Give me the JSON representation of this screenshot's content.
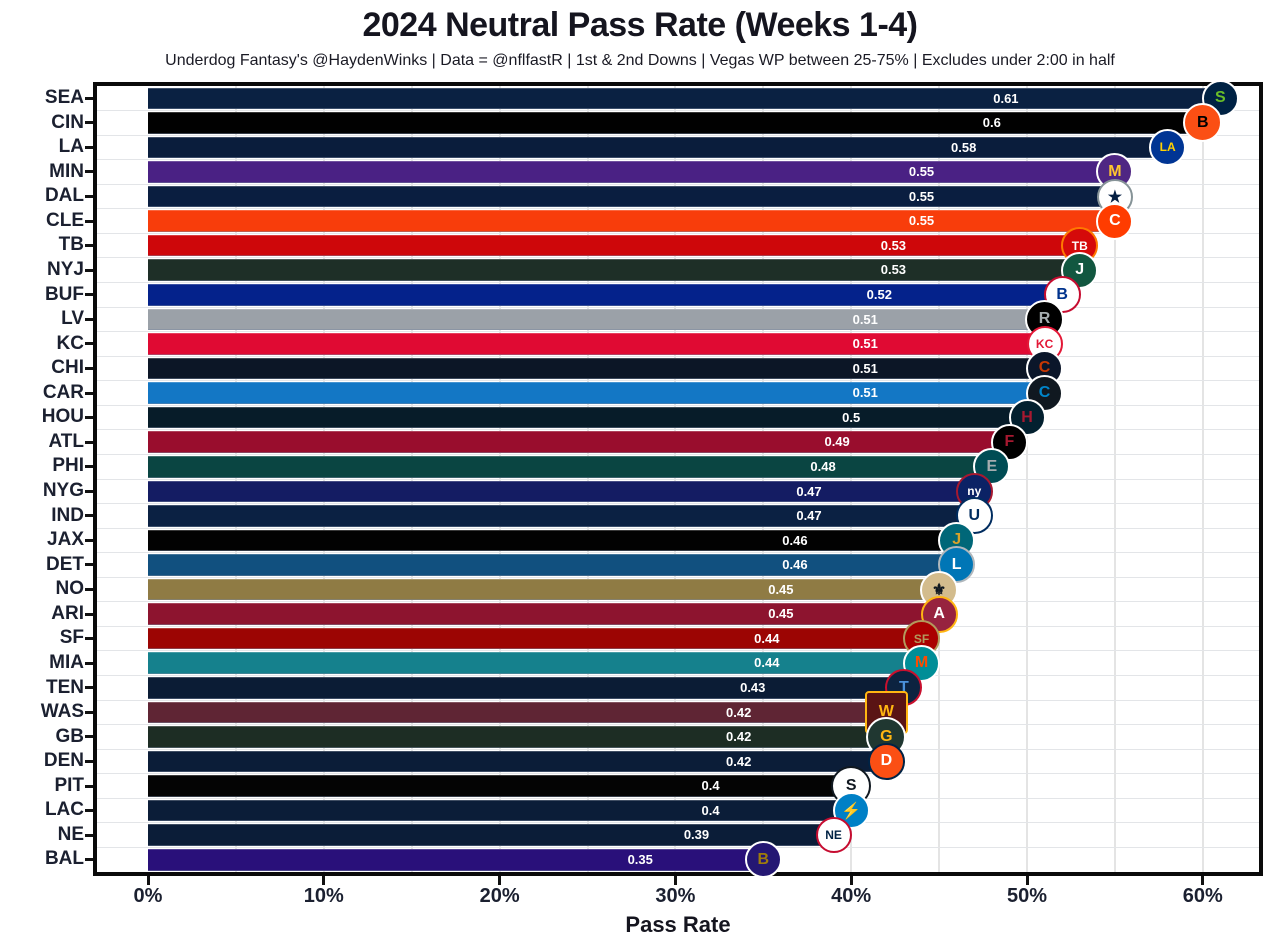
{
  "header": {
    "title": "2024 Neutral Pass Rate (Weeks 1-4)",
    "subtitle": "Underdog Fantasy's @HaydenWinks | Data = @nflfastR | 1st & 2nd Downs | Vegas WP between 25-75% | Excludes under 2:00 in half"
  },
  "panel_style": {
    "background": "#ffffff",
    "border_color": "#0a0a0a",
    "vgrid_color": "#e4e4e4",
    "hgrid_color": "#e3e5e8",
    "axis_text_color": "#1b2030",
    "bar_label_color": "#ffffff"
  },
  "chart_data": {
    "type": "bar",
    "orientation": "horizontal",
    "title": "2024 Neutral Pass Rate (Weeks 1-4)",
    "subtitle": "Underdog Fantasy's @HaydenWinks | Data = @nflfastR | 1st & 2nd Downs | Vegas WP between 25-75% | Excludes under 2:00 in half",
    "xlabel": "Pass Rate",
    "ylabel": "",
    "x_tick_labels": [
      "0%",
      "10%",
      "20%",
      "30%",
      "40%",
      "50%",
      "60%"
    ],
    "x_tick_values": [
      0,
      10,
      20,
      30,
      40,
      50,
      60
    ],
    "x_minor_grid_step_pct": 5,
    "xlim_pct": [
      0,
      63.4
    ],
    "grid": "on",
    "legend": "none",
    "categories": [
      "SEA",
      "CIN",
      "LA",
      "MIN",
      "DAL",
      "CLE",
      "TB",
      "NYJ",
      "BUF",
      "LV",
      "KC",
      "CHI",
      "CAR",
      "HOU",
      "ATL",
      "PHI",
      "NYG",
      "IND",
      "JAX",
      "DET",
      "NO",
      "ARI",
      "SF",
      "MIA",
      "TEN",
      "WAS",
      "GB",
      "DEN",
      "PIT",
      "LAC",
      "NE",
      "BAL"
    ],
    "values": [
      0.61,
      0.6,
      0.58,
      0.55,
      0.55,
      0.55,
      0.53,
      0.53,
      0.52,
      0.51,
      0.51,
      0.51,
      0.51,
      0.5,
      0.49,
      0.48,
      0.47,
      0.47,
      0.46,
      0.46,
      0.45,
      0.45,
      0.44,
      0.44,
      0.43,
      0.42,
      0.42,
      0.42,
      0.4,
      0.4,
      0.39,
      0.35
    ],
    "bar_labels": [
      "0.61",
      "0.6",
      "0.58",
      "0.55",
      "0.55",
      "0.55",
      "0.53",
      "0.53",
      "0.52",
      "0.51",
      "0.51",
      "0.51",
      "0.51",
      "0.5",
      "0.49",
      "0.48",
      "0.47",
      "0.47",
      "0.46",
      "0.46",
      "0.45",
      "0.45",
      "0.44",
      "0.44",
      "0.43",
      "0.42",
      "0.42",
      "0.42",
      "0.4",
      "0.4",
      "0.39",
      "0.35"
    ],
    "teams": [
      {
        "abbr": "SEA",
        "value": 0.61,
        "label": "0.61",
        "color": "#0a2142",
        "logo": {
          "mark": "S",
          "bg": "#002244",
          "fg": "#69be28",
          "ring": "#ffffff",
          "shape": "circle",
          "size": 37
        }
      },
      {
        "abbr": "CIN",
        "value": 0.6,
        "label": "0.6",
        "color": "#010101",
        "logo": {
          "mark": "B",
          "bg": "#fb4f14",
          "fg": "#000000",
          "ring": "#ffffff",
          "shape": "circle",
          "size": 39
        }
      },
      {
        "abbr": "LA",
        "value": 0.58,
        "label": "0.58",
        "color": "#0a1d3c",
        "logo": {
          "mark": "LA",
          "bg": "#003594",
          "fg": "#ffd100",
          "ring": "#ffffff",
          "shape": "circle",
          "size": 37
        }
      },
      {
        "abbr": "MIN",
        "value": 0.55,
        "label": "0.55",
        "color": "#4a2184",
        "logo": {
          "mark": "M",
          "bg": "#4f2683",
          "fg": "#ffc62f",
          "ring": "#ffffff",
          "shape": "circle",
          "size": 37
        }
      },
      {
        "abbr": "DAL",
        "value": 0.55,
        "label": "0.55",
        "color": "#0a1e40",
        "logo": {
          "mark": "★",
          "bg": "#ffffff",
          "fg": "#041e42",
          "ring": "#869397",
          "shape": "circle",
          "size": 36
        }
      },
      {
        "abbr": "CLE",
        "value": 0.55,
        "label": "0.55",
        "color": "#f83d0b",
        "logo": {
          "mark": "C",
          "bg": "#ff3c00",
          "fg": "#ffffff",
          "ring": "#ffffff",
          "shape": "circle",
          "size": 37
        }
      },
      {
        "abbr": "TB",
        "value": 0.53,
        "label": "0.53",
        "color": "#ce070a",
        "logo": {
          "mark": "TB",
          "bg": "#d50a0a",
          "fg": "#ffffff",
          "ring": "#ff7900",
          "shape": "circle",
          "size": 37
        }
      },
      {
        "abbr": "NYJ",
        "value": 0.53,
        "label": "0.53",
        "color": "#1e2f27",
        "logo": {
          "mark": "J",
          "bg": "#125740",
          "fg": "#ffffff",
          "ring": "#ffffff",
          "shape": "circle",
          "size": 37
        }
      },
      {
        "abbr": "BUF",
        "value": 0.52,
        "label": "0.52",
        "color": "#04228b",
        "logo": {
          "mark": "B",
          "bg": "#ffffff",
          "fg": "#00338d",
          "ring": "#c60c30",
          "shape": "circle",
          "size": 37
        }
      },
      {
        "abbr": "LV",
        "value": 0.51,
        "label": "0.51",
        "color": "#9ba1a8",
        "logo": {
          "mark": "R",
          "bg": "#000000",
          "fg": "#a5acaf",
          "ring": "#ffffff",
          "shape": "circle",
          "size": 39
        }
      },
      {
        "abbr": "KC",
        "value": 0.51,
        "label": "0.51",
        "color": "#e00a33",
        "logo": {
          "mark": "KC",
          "bg": "#ffffff",
          "fg": "#e31837",
          "ring": "#e31837",
          "shape": "circle",
          "size": 36
        }
      },
      {
        "abbr": "CHI",
        "value": 0.51,
        "label": "0.51",
        "color": "#0c1626",
        "logo": {
          "mark": "C",
          "bg": "#0b162a",
          "fg": "#c83803",
          "ring": "#ffffff",
          "shape": "circle",
          "size": 37
        }
      },
      {
        "abbr": "CAR",
        "value": 0.51,
        "label": "0.51",
        "color": "#1377c5",
        "logo": {
          "mark": "C",
          "bg": "#101820",
          "fg": "#0085ca",
          "ring": "#ffffff",
          "shape": "circle",
          "size": 37
        }
      },
      {
        "abbr": "HOU",
        "value": 0.5,
        "label": "0.5",
        "color": "#071c29",
        "logo": {
          "mark": "H",
          "bg": "#03202f",
          "fg": "#a71930",
          "ring": "#ffffff",
          "shape": "circle",
          "size": 37
        }
      },
      {
        "abbr": "ATL",
        "value": 0.49,
        "label": "0.49",
        "color": "#990d2d",
        "logo": {
          "mark": "F",
          "bg": "#000000",
          "fg": "#a71930",
          "ring": "#ffffff",
          "shape": "circle",
          "size": 37
        }
      },
      {
        "abbr": "PHI",
        "value": 0.48,
        "label": "0.48",
        "color": "#0a4542",
        "logo": {
          "mark": "E",
          "bg": "#004c54",
          "fg": "#a5acaf",
          "ring": "#ffffff",
          "shape": "circle",
          "size": 37
        }
      },
      {
        "abbr": "NYG",
        "value": 0.47,
        "label": "0.47",
        "color": "#141c63",
        "logo": {
          "mark": "ny",
          "bg": "#0b2265",
          "fg": "#ffffff",
          "ring": "#a71930",
          "shape": "circle",
          "size": 37
        }
      },
      {
        "abbr": "IND",
        "value": 0.47,
        "label": "0.47",
        "color": "#0b2143",
        "logo": {
          "mark": "U",
          "bg": "#ffffff",
          "fg": "#002c5f",
          "ring": "#002c5f",
          "shape": "circle",
          "size": 37
        }
      },
      {
        "abbr": "JAX",
        "value": 0.46,
        "label": "0.46",
        "color": "#020202",
        "logo": {
          "mark": "J",
          "bg": "#006778",
          "fg": "#d7a22a",
          "ring": "#ffffff",
          "shape": "circle",
          "size": 37
        }
      },
      {
        "abbr": "DET",
        "value": 0.46,
        "label": "0.46",
        "color": "#11507f",
        "logo": {
          "mark": "L",
          "bg": "#0076b6",
          "fg": "#ffffff",
          "ring": "#b0b7bc",
          "shape": "circle",
          "size": 37
        }
      },
      {
        "abbr": "NO",
        "value": 0.45,
        "label": "0.45",
        "color": "#8f7b44",
        "logo": {
          "mark": "⚜",
          "bg": "#d3bc8d",
          "fg": "#101820",
          "ring": "#ffffff",
          "shape": "circle",
          "size": 38
        }
      },
      {
        "abbr": "ARI",
        "value": 0.45,
        "label": "0.45",
        "color": "#8d142f",
        "logo": {
          "mark": "A",
          "bg": "#97233f",
          "fg": "#ffffff",
          "ring": "#ffb612",
          "shape": "circle",
          "size": 37
        }
      },
      {
        "abbr": "SF",
        "value": 0.44,
        "label": "0.44",
        "color": "#9c0503",
        "logo": {
          "mark": "SF",
          "bg": "#aa0000",
          "fg": "#b3995d",
          "ring": "#b3995d",
          "shape": "circle",
          "size": 37
        }
      },
      {
        "abbr": "MIA",
        "value": 0.44,
        "label": "0.44",
        "color": "#15818d",
        "logo": {
          "mark": "M",
          "bg": "#008e97",
          "fg": "#fc4c02",
          "ring": "#ffffff",
          "shape": "circle",
          "size": 37
        }
      },
      {
        "abbr": "TEN",
        "value": 0.43,
        "label": "0.43",
        "color": "#0b1c35",
        "logo": {
          "mark": "T",
          "bg": "#0c2340",
          "fg": "#4b92db",
          "ring": "#c8102e",
          "shape": "circle",
          "size": 37
        }
      },
      {
        "abbr": "WAS",
        "value": 0.42,
        "label": "0.42",
        "color": "#5f2534",
        "logo": {
          "mark": "W",
          "bg": "#5a1414",
          "fg": "#ffb612",
          "ring": "#ffb612",
          "shape": "square",
          "size": 43
        }
      },
      {
        "abbr": "GB",
        "value": 0.42,
        "label": "0.42",
        "color": "#1d2d24",
        "logo": {
          "mark": "G",
          "bg": "#203731",
          "fg": "#ffb612",
          "ring": "#ffffff",
          "shape": "circle",
          "size": 40
        }
      },
      {
        "abbr": "DEN",
        "value": 0.42,
        "label": "0.42",
        "color": "#0b1d38",
        "logo": {
          "mark": "D",
          "bg": "#fb4f14",
          "fg": "#ffffff",
          "ring": "#002244",
          "shape": "circle",
          "size": 37
        }
      },
      {
        "abbr": "PIT",
        "value": 0.4,
        "label": "0.4",
        "color": "#040404",
        "logo": {
          "mark": "S",
          "bg": "#ffffff",
          "fg": "#101820",
          "ring": "#101820",
          "shape": "circle",
          "size": 40
        }
      },
      {
        "abbr": "LAC",
        "value": 0.4,
        "label": "0.4",
        "color": "#0b1d38",
        "logo": {
          "mark": "⚡",
          "bg": "#0080c6",
          "fg": "#ffc20e",
          "ring": "#ffffff",
          "shape": "circle",
          "size": 37
        }
      },
      {
        "abbr": "NE",
        "value": 0.39,
        "label": "0.39",
        "color": "#0b1d38",
        "logo": {
          "mark": "NE",
          "bg": "#ffffff",
          "fg": "#002244",
          "ring": "#c60c30",
          "shape": "circle",
          "size": 36
        }
      },
      {
        "abbr": "BAL",
        "value": 0.35,
        "label": "0.35",
        "color": "#29107a",
        "logo": {
          "mark": "B",
          "bg": "#241773",
          "fg": "#9e7c0c",
          "ring": "#ffffff",
          "shape": "circle",
          "size": 37
        }
      }
    ]
  }
}
